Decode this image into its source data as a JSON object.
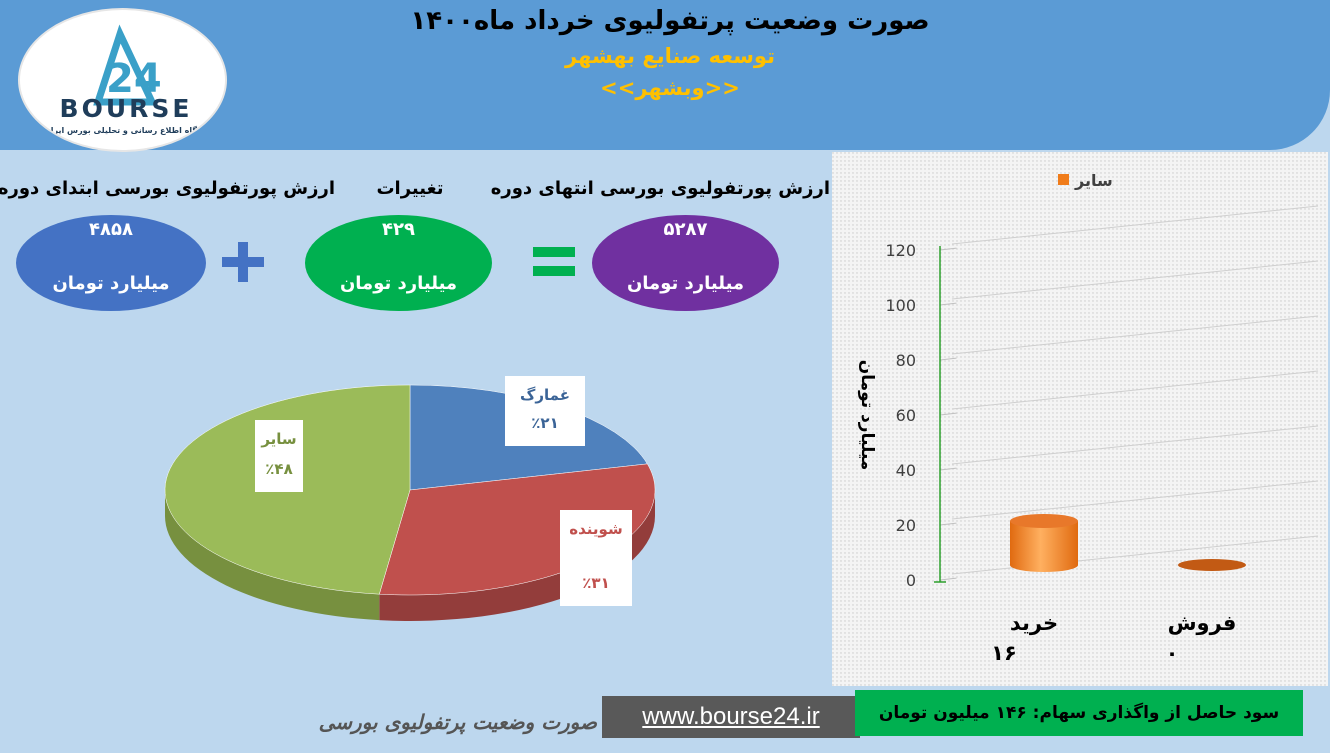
{
  "header": {
    "title": "صورت وضعیت پرتفولیوی خرداد ماه۱۴۰۰",
    "subtitle": "توسعه صنایع بهشهر",
    "symbol": "<<وبشهر>>",
    "logo_text": "BOURSE",
    "logo_subtext": "پایگاه اطلاع رسانی و تحلیلی بورس ایران",
    "logo_number": "24"
  },
  "summary": {
    "start": {
      "label": "ارزش پورتفولیوی بورسی ابتدای دوره",
      "value": "۴۸۵۸",
      "unit": "میلیارد تومان"
    },
    "change": {
      "label": "تغییرات",
      "value": "۴۲۹",
      "unit": "میلیارد تومان"
    },
    "end": {
      "label": "ارزش پورتفولیوی بورسی انتهای دوره",
      "value": "۵۲۸۷",
      "unit": "میلیارد تومان"
    },
    "plus": "+",
    "equals": "="
  },
  "colors": {
    "header": "#5b9bd5",
    "background": "#bdd7ee",
    "start_oval": "#4472c4",
    "change_oval": "#00b050",
    "end_oval": "#7030a0",
    "pie_ghamarg": "#4f81bd",
    "pie_shavandeh": "#c0504d",
    "pie_sayer": "#9bbb59",
    "bar_orange": "#f07c1a",
    "sub_title": "#ffc000"
  },
  "chart_data": [
    {
      "type": "pie",
      "slices": [
        {
          "label": "غمارگ",
          "value": 21,
          "display": "٪۲۱"
        },
        {
          "label": "شوینده",
          "value": 31,
          "display": "٪۳۱"
        },
        {
          "label": "سایر",
          "value": 48,
          "display": "٪۴۸"
        }
      ]
    },
    {
      "type": "bar",
      "legend": "سایر",
      "legend_position": "top-right",
      "ylabel": "میلیارد تومان",
      "ylim": [
        0,
        120
      ],
      "yticks": [
        0,
        20,
        40,
        60,
        80,
        100,
        120
      ],
      "categories": [
        "خرید",
        "فروش"
      ],
      "values": [
        16,
        0
      ],
      "value_labels": [
        "۱۶",
        "۰"
      ]
    }
  ],
  "footer": {
    "caption": "صورت وضعیت پرتفولیوی بورسی",
    "url": "www.bourse24.ir",
    "profit": "سود حاصل از واگذاری سهام: ۱۴۶ میلیون تومان"
  }
}
